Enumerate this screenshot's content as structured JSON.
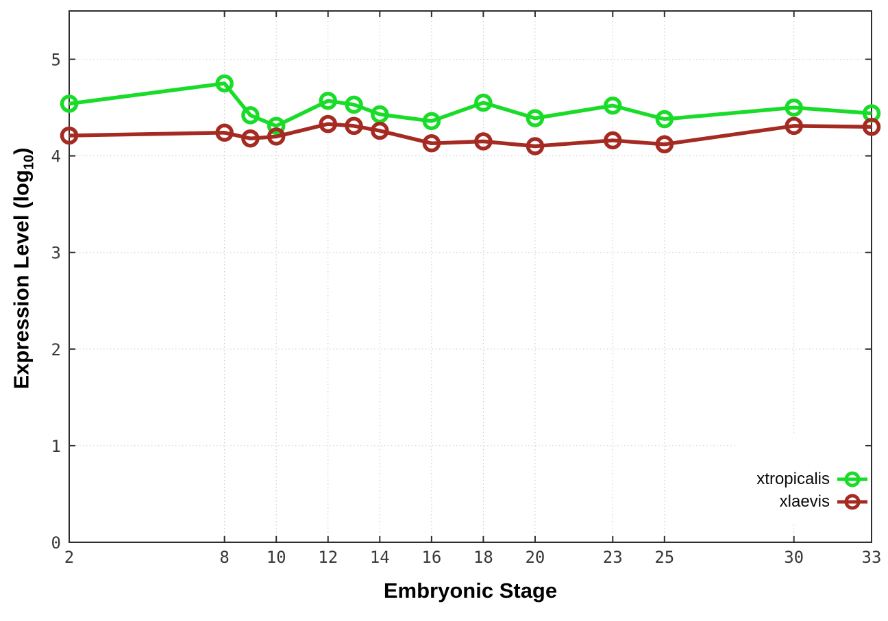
{
  "chart_data": {
    "type": "line",
    "title": "",
    "xlabel": "Embryonic Stage",
    "ylabel": "Expression Level (log10)",
    "ylabel_parts": {
      "main": "Expression Level (log",
      "sub": "10",
      "close": ")"
    },
    "x": [
      2,
      8,
      9,
      10,
      12,
      13,
      14,
      16,
      18,
      20,
      23,
      25,
      30,
      33
    ],
    "xlim": [
      2,
      33
    ],
    "ylim": [
      0,
      5.5
    ],
    "xticks": [
      2,
      8,
      10,
      12,
      14,
      16,
      18,
      20,
      23,
      25,
      30,
      33
    ],
    "yticks": [
      0,
      1,
      2,
      3,
      4,
      5
    ],
    "grid": true,
    "legend": {
      "position": "inside-right-bottom",
      "background": "#ffffff"
    },
    "series": [
      {
        "name": "xtropicalis",
        "color": "#19dc29",
        "marker": "open-circle",
        "values": [
          4.54,
          4.75,
          4.42,
          4.31,
          4.57,
          4.53,
          4.43,
          4.36,
          4.55,
          4.39,
          4.52,
          4.38,
          4.5,
          4.44
        ]
      },
      {
        "name": "xlaevis",
        "color": "#a42a22",
        "marker": "open-circle",
        "values": [
          4.21,
          4.24,
          4.18,
          4.2,
          4.33,
          4.31,
          4.26,
          4.13,
          4.15,
          4.1,
          4.16,
          4.12,
          4.31,
          4.3
        ]
      }
    ],
    "colors": {
      "grid": "#c6c6c6",
      "axis": "#2d2d2d",
      "tick_text": "#383838"
    }
  }
}
